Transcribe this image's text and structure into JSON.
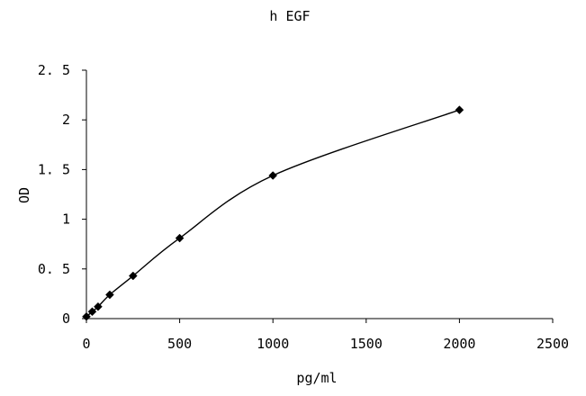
{
  "chart_data": {
    "type": "line",
    "title": "h EGF",
    "xlabel": "pg/ml",
    "ylabel": "OD",
    "xlim": [
      0,
      2500
    ],
    "ylim": [
      0,
      2.5
    ],
    "x_ticks": [
      0,
      500,
      1000,
      1500,
      2000,
      2500
    ],
    "y_ticks": [
      0,
      0.5,
      1,
      1.5,
      2,
      2.5
    ],
    "x_tick_labels": [
      "0",
      "500",
      "1000",
      "1500",
      "2000",
      "2500"
    ],
    "y_tick_labels": [
      "0",
      "0. 5",
      "1",
      "1. 5",
      "2",
      "2. 5"
    ],
    "grid": false,
    "legend": "none",
    "marker": "diamond",
    "line_color": "#000000",
    "marker_color": "#000000",
    "series": [
      {
        "x": [
          0,
          31.25,
          62.5,
          125,
          250,
          500,
          1000,
          2000
        ],
        "y": [
          0.02,
          0.07,
          0.12,
          0.24,
          0.43,
          0.81,
          1.44,
          2.1
        ]
      }
    ]
  }
}
